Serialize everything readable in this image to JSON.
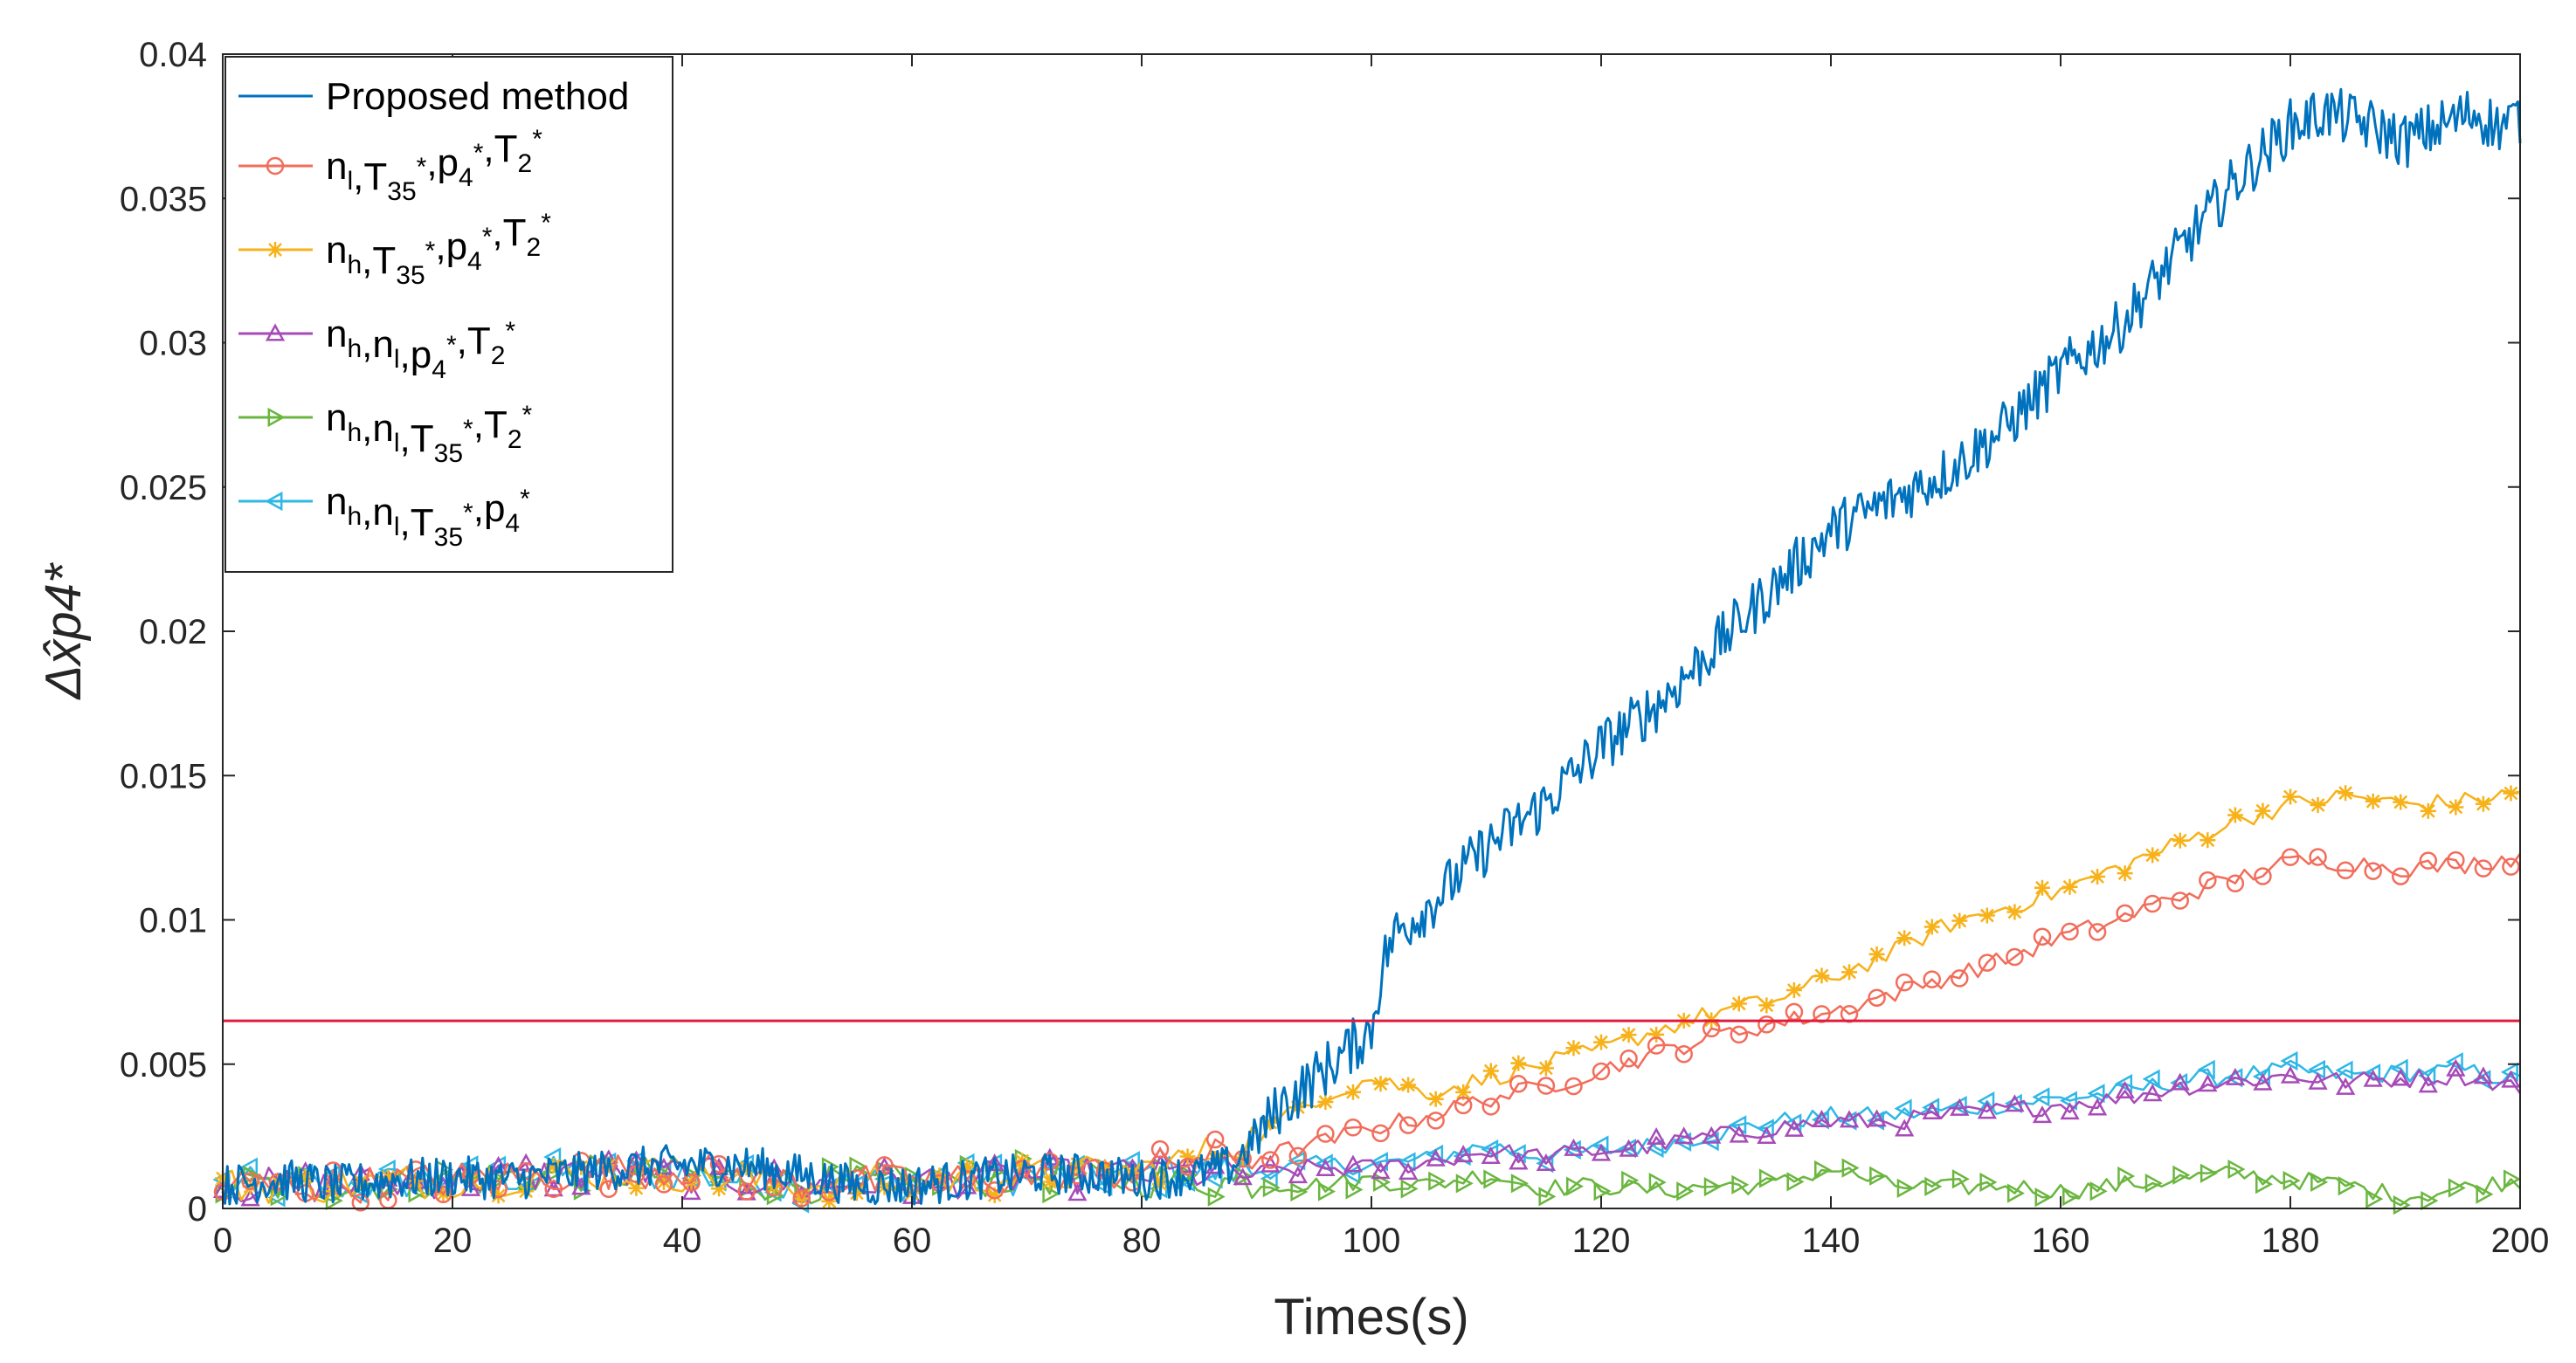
{
  "chart_data": {
    "type": "line",
    "title": "",
    "xlabel": "Times(s)",
    "ylabel": "Δx̂p4*",
    "xlim": [
      0,
      200
    ],
    "ylim": [
      0,
      0.04
    ],
    "x_ticks": [
      0,
      20,
      40,
      60,
      80,
      100,
      120,
      140,
      160,
      180,
      200
    ],
    "y_ticks": [
      0,
      0.005,
      0.01,
      0.015,
      0.02,
      0.025,
      0.03,
      0.035,
      0.04
    ],
    "x_tick_labels": [
      "0",
      "20",
      "40",
      "60",
      "80",
      "100",
      "120",
      "140",
      "160",
      "180",
      "200"
    ],
    "y_tick_labels": [
      "0",
      "0.005",
      "0.01",
      "0.015",
      "0.02",
      "0.025",
      "0.03",
      "0.035",
      "0.04"
    ],
    "grid": false,
    "legend_position": "top-left",
    "threshold": {
      "y": 0.0065,
      "color": "#e31a3c"
    },
    "series": [
      {
        "name": "Proposed method",
        "label_parts": [
          [
            "Proposed method",
            ""
          ]
        ],
        "color": "#0072bd",
        "marker": "none",
        "points": [
          [
            0,
            0.0008
          ],
          [
            5,
            0.001
          ],
          [
            10,
            0.0008
          ],
          [
            15,
            0.001
          ],
          [
            20,
            0.0011
          ],
          [
            25,
            0.001
          ],
          [
            30,
            0.0012
          ],
          [
            35,
            0.0014
          ],
          [
            40,
            0.0015
          ],
          [
            45,
            0.0015
          ],
          [
            50,
            0.0012
          ],
          [
            55,
            0.0008
          ],
          [
            60,
            0.0008
          ],
          [
            65,
            0.001
          ],
          [
            70,
            0.0012
          ],
          [
            75,
            0.0012
          ],
          [
            80,
            0.001
          ],
          [
            85,
            0.0012
          ],
          [
            88,
            0.0015
          ],
          [
            90,
            0.0025
          ],
          [
            92,
            0.0035
          ],
          [
            95,
            0.0045
          ],
          [
            98,
            0.0055
          ],
          [
            100,
            0.0062
          ],
          [
            101,
            0.0085
          ],
          [
            102,
            0.0095
          ],
          [
            105,
            0.0105
          ],
          [
            110,
            0.0125
          ],
          [
            115,
            0.014
          ],
          [
            120,
            0.016
          ],
          [
            125,
            0.0175
          ],
          [
            130,
            0.0195
          ],
          [
            135,
            0.0215
          ],
          [
            140,
            0.0235
          ],
          [
            145,
            0.0245
          ],
          [
            150,
            0.0255
          ],
          [
            155,
            0.027
          ],
          [
            160,
            0.029
          ],
          [
            165,
            0.0305
          ],
          [
            170,
            0.033
          ],
          [
            175,
            0.0355
          ],
          [
            180,
            0.0375
          ],
          [
            183,
            0.038
          ],
          [
            187,
            0.0375
          ],
          [
            190,
            0.037
          ],
          [
            193,
            0.0375
          ],
          [
            196,
            0.038
          ],
          [
            198,
            0.0375
          ],
          [
            200,
            0.0378
          ]
        ]
      },
      {
        "name": "nl,T35*,p4*,T2*",
        "label_parts": [
          [
            "n",
            ""
          ],
          [
            "l",
            "sub"
          ],
          [
            ",T",
            ""
          ],
          [
            "35",
            "sub"
          ],
          [
            "*",
            "sup"
          ],
          [
            ",p",
            ""
          ],
          [
            "4",
            "sub"
          ],
          [
            "*",
            "sup"
          ],
          [
            ",T",
            ""
          ],
          [
            "2",
            "sub"
          ],
          [
            "*",
            "sup"
          ]
        ],
        "color": "#f26d5b",
        "marker": "circle",
        "points": [
          [
            0,
            0.0008
          ],
          [
            10,
            0.0008
          ],
          [
            20,
            0.001
          ],
          [
            30,
            0.0012
          ],
          [
            40,
            0.0014
          ],
          [
            50,
            0.0009
          ],
          [
            60,
            0.0009
          ],
          [
            70,
            0.0011
          ],
          [
            80,
            0.0013
          ],
          [
            85,
            0.0018
          ],
          [
            90,
            0.0018
          ],
          [
            95,
            0.0022
          ],
          [
            100,
            0.0028
          ],
          [
            105,
            0.0032
          ],
          [
            110,
            0.0038
          ],
          [
            115,
            0.0042
          ],
          [
            120,
            0.0048
          ],
          [
            125,
            0.0054
          ],
          [
            130,
            0.006
          ],
          [
            135,
            0.0064
          ],
          [
            140,
            0.0068
          ],
          [
            145,
            0.0074
          ],
          [
            150,
            0.008
          ],
          [
            155,
            0.0086
          ],
          [
            160,
            0.0094
          ],
          [
            165,
            0.01
          ],
          [
            170,
            0.0108
          ],
          [
            175,
            0.0114
          ],
          [
            180,
            0.012
          ],
          [
            185,
            0.012
          ],
          [
            190,
            0.0118
          ],
          [
            195,
            0.0119
          ],
          [
            200,
            0.0122
          ]
        ]
      },
      {
        "name": "nh,T35*,p4*,T2*",
        "label_parts": [
          [
            "n",
            ""
          ],
          [
            "h",
            "sub"
          ],
          [
            ",T",
            ""
          ],
          [
            "35",
            "sub"
          ],
          [
            "*",
            "sup"
          ],
          [
            ",p",
            ""
          ],
          [
            "4",
            "sub"
          ],
          [
            "*",
            "sup"
          ],
          [
            ",T",
            ""
          ],
          [
            "2",
            "sub"
          ],
          [
            "*",
            "sup"
          ]
        ],
        "color": "#f7b21a",
        "marker": "star",
        "points": [
          [
            0,
            0.0008
          ],
          [
            10,
            0.0008
          ],
          [
            20,
            0.001
          ],
          [
            30,
            0.0012
          ],
          [
            40,
            0.0012
          ],
          [
            50,
            0.0008
          ],
          [
            60,
            0.0009
          ],
          [
            70,
            0.0011
          ],
          [
            80,
            0.0013
          ],
          [
            85,
            0.0018
          ],
          [
            90,
            0.0025
          ],
          [
            95,
            0.0038
          ],
          [
            100,
            0.0045
          ],
          [
            105,
            0.004
          ],
          [
            110,
            0.0045
          ],
          [
            115,
            0.005
          ],
          [
            120,
            0.0055
          ],
          [
            125,
            0.0062
          ],
          [
            130,
            0.0068
          ],
          [
            135,
            0.0072
          ],
          [
            140,
            0.008
          ],
          [
            145,
            0.0088
          ],
          [
            150,
            0.0098
          ],
          [
            155,
            0.0104
          ],
          [
            160,
            0.011
          ],
          [
            165,
            0.0118
          ],
          [
            170,
            0.0126
          ],
          [
            175,
            0.0134
          ],
          [
            180,
            0.014
          ],
          [
            185,
            0.0143
          ],
          [
            190,
            0.014
          ],
          [
            195,
            0.0141
          ],
          [
            200,
            0.0144
          ]
        ]
      },
      {
        "name": "nh,nl,p4*,T2*",
        "label_parts": [
          [
            "n",
            ""
          ],
          [
            "h",
            "sub"
          ],
          [
            ",n",
            ""
          ],
          [
            "l",
            "sub"
          ],
          [
            ",p",
            ""
          ],
          [
            "4",
            "sub"
          ],
          [
            "*",
            "sup"
          ],
          [
            ",T",
            ""
          ],
          [
            "2",
            "sub"
          ],
          [
            "*",
            "sup"
          ]
        ],
        "color": "#a74bb8",
        "marker": "triangle-up",
        "points": [
          [
            0,
            0.0008
          ],
          [
            10,
            0.0008
          ],
          [
            20,
            0.001
          ],
          [
            30,
            0.0012
          ],
          [
            40,
            0.0012
          ],
          [
            50,
            0.0008
          ],
          [
            60,
            0.0009
          ],
          [
            70,
            0.0011
          ],
          [
            80,
            0.0012
          ],
          [
            90,
            0.0012
          ],
          [
            95,
            0.0014
          ],
          [
            100,
            0.0014
          ],
          [
            105,
            0.0016
          ],
          [
            110,
            0.002
          ],
          [
            115,
            0.0018
          ],
          [
            120,
            0.002
          ],
          [
            125,
            0.0022
          ],
          [
            130,
            0.0025
          ],
          [
            135,
            0.0028
          ],
          [
            140,
            0.003
          ],
          [
            145,
            0.003
          ],
          [
            150,
            0.0032
          ],
          [
            155,
            0.0034
          ],
          [
            160,
            0.0036
          ],
          [
            165,
            0.0038
          ],
          [
            170,
            0.0042
          ],
          [
            175,
            0.0044
          ],
          [
            180,
            0.0046
          ],
          [
            185,
            0.0044
          ],
          [
            190,
            0.0045
          ],
          [
            195,
            0.0046
          ],
          [
            200,
            0.0042
          ]
        ]
      },
      {
        "name": "nh,nl,T35*,T2*",
        "label_parts": [
          [
            "n",
            ""
          ],
          [
            "h",
            "sub"
          ],
          [
            ",n",
            ""
          ],
          [
            "l",
            "sub"
          ],
          [
            ",T",
            ""
          ],
          [
            "35",
            "sub"
          ],
          [
            "*",
            "sup"
          ],
          [
            ",T",
            ""
          ],
          [
            "2",
            "sub"
          ],
          [
            "*",
            "sup"
          ]
        ],
        "color": "#6ab63f",
        "marker": "triangle-right",
        "points": [
          [
            0,
            0.0008
          ],
          [
            10,
            0.0008
          ],
          [
            20,
            0.001
          ],
          [
            30,
            0.0012
          ],
          [
            40,
            0.0012
          ],
          [
            50,
            0.0008
          ],
          [
            60,
            0.0009
          ],
          [
            70,
            0.0011
          ],
          [
            80,
            0.001
          ],
          [
            90,
            0.0009
          ],
          [
            95,
            0.0008
          ],
          [
            100,
            0.001
          ],
          [
            105,
            0.0008
          ],
          [
            110,
            0.0012
          ],
          [
            115,
            0.0007
          ],
          [
            120,
            0.0008
          ],
          [
            125,
            0.0006
          ],
          [
            130,
            0.0008
          ],
          [
            135,
            0.0008
          ],
          [
            140,
            0.0014
          ],
          [
            145,
            0.0008
          ],
          [
            150,
            0.0007
          ],
          [
            155,
            0.0008
          ],
          [
            160,
            0.0006
          ],
          [
            165,
            0.0008
          ],
          [
            170,
            0.001
          ],
          [
            175,
            0.0012
          ],
          [
            180,
            0.001
          ],
          [
            185,
            0.0008
          ],
          [
            190,
            0.0004
          ],
          [
            195,
            0.0007
          ],
          [
            200,
            0.001
          ]
        ]
      },
      {
        "name": "nh,nl,T35*,p4*",
        "label_parts": [
          [
            "n",
            ""
          ],
          [
            "h",
            "sub"
          ],
          [
            ",n",
            ""
          ],
          [
            "l",
            "sub"
          ],
          [
            ",T",
            ""
          ],
          [
            "35",
            "sub"
          ],
          [
            "*",
            "sup"
          ],
          [
            ",p",
            ""
          ],
          [
            "4",
            "sub"
          ],
          [
            "*",
            "sup"
          ]
        ],
        "color": "#2fb7e6",
        "marker": "triangle-left",
        "points": [
          [
            0,
            0.0008
          ],
          [
            10,
            0.0008
          ],
          [
            20,
            0.001
          ],
          [
            30,
            0.0012
          ],
          [
            40,
            0.0012
          ],
          [
            50,
            0.0008
          ],
          [
            60,
            0.0009
          ],
          [
            70,
            0.0011
          ],
          [
            80,
            0.0012
          ],
          [
            90,
            0.0013
          ],
          [
            95,
            0.0015
          ],
          [
            100,
            0.0015
          ],
          [
            105,
            0.0017
          ],
          [
            110,
            0.0022
          ],
          [
            115,
            0.0018
          ],
          [
            120,
            0.002
          ],
          [
            125,
            0.0022
          ],
          [
            130,
            0.0026
          ],
          [
            135,
            0.003
          ],
          [
            140,
            0.0032
          ],
          [
            145,
            0.0032
          ],
          [
            150,
            0.0034
          ],
          [
            155,
            0.0036
          ],
          [
            160,
            0.0038
          ],
          [
            165,
            0.004
          ],
          [
            170,
            0.0044
          ],
          [
            175,
            0.0046
          ],
          [
            180,
            0.0048
          ],
          [
            185,
            0.0046
          ],
          [
            190,
            0.0047
          ],
          [
            195,
            0.0048
          ],
          [
            200,
            0.0044
          ]
        ]
      }
    ]
  }
}
